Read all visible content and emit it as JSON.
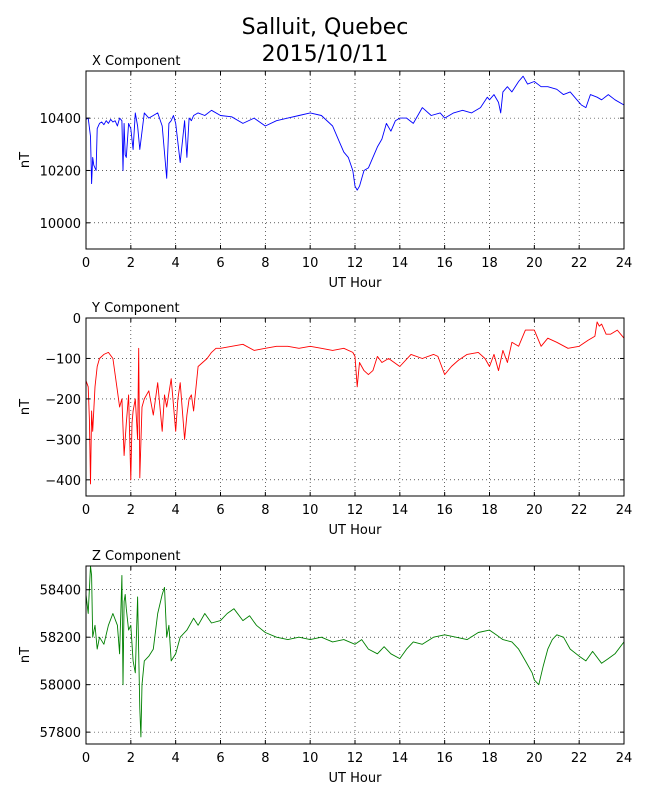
{
  "title_line1": "Salluit, Quebec",
  "title_line2": "2015/10/11",
  "chart_data": [
    {
      "type": "line",
      "title": "X Component",
      "xlabel": "UT Hour",
      "ylabel": "nT",
      "color": "#0000ff",
      "xlim": [
        0,
        24
      ],
      "ylim": [
        9900,
        10580
      ],
      "xticks": [
        0,
        2,
        4,
        6,
        8,
        10,
        12,
        14,
        16,
        18,
        20,
        22,
        24
      ],
      "yticks": [
        10000,
        10200,
        10400
      ],
      "grid": true,
      "series": [
        {
          "x": [
            0,
            0.1,
            0.2,
            0.25,
            0.3,
            0.35,
            0.45,
            0.5,
            0.6,
            0.7,
            0.8,
            0.9,
            1.0,
            1.1,
            1.2,
            1.3,
            1.4,
            1.5,
            1.6,
            1.65,
            1.7,
            1.75,
            1.8,
            1.9,
            2.0,
            2.1,
            2.2,
            2.3,
            2.4,
            2.6,
            2.8,
            3.0,
            3.2,
            3.4,
            3.6,
            3.7,
            3.8,
            3.9,
            4.0,
            4.2,
            4.4,
            4.5,
            4.6,
            4.7,
            4.8,
            5.0,
            5.3,
            5.6,
            6.0,
            6.5,
            7.0,
            7.5,
            8.0,
            8.5,
            9.0,
            9.5,
            10.0,
            10.5,
            11.0,
            11.3,
            11.5,
            11.7,
            11.9,
            12.0,
            12.1,
            12.2,
            12.4,
            12.6,
            12.8,
            13.0,
            13.2,
            13.4,
            13.6,
            13.8,
            14.0,
            14.3,
            14.6,
            15.0,
            15.4,
            15.8,
            16.0,
            16.4,
            16.8,
            17.2,
            17.6,
            17.9,
            18.0,
            18.2,
            18.4,
            18.5,
            18.6,
            18.8,
            19.0,
            19.3,
            19.5,
            19.7,
            20.0,
            20.3,
            20.6,
            21.0,
            21.3,
            21.6,
            21.9,
            22.1,
            22.3,
            22.5,
            22.8,
            23.0,
            23.3,
            23.6,
            24.0
          ],
          "y": [
            10395,
            10400,
            10330,
            10150,
            10250,
            10220,
            10200,
            10360,
            10380,
            10385,
            10375,
            10390,
            10380,
            10395,
            10385,
            10390,
            10370,
            10400,
            10390,
            10200,
            10380,
            10260,
            10250,
            10380,
            10360,
            10280,
            10420,
            10370,
            10280,
            10420,
            10400,
            10410,
            10420,
            10370,
            10170,
            10380,
            10390,
            10410,
            10380,
            10230,
            10390,
            10250,
            10400,
            10390,
            10410,
            10420,
            10410,
            10430,
            10410,
            10405,
            10380,
            10400,
            10370,
            10390,
            10400,
            10410,
            10420,
            10410,
            10370,
            10310,
            10270,
            10250,
            10200,
            10140,
            10125,
            10140,
            10200,
            10210,
            10250,
            10290,
            10320,
            10380,
            10350,
            10390,
            10400,
            10400,
            10380,
            10440,
            10410,
            10420,
            10400,
            10420,
            10430,
            10420,
            10440,
            10480,
            10470,
            10490,
            10460,
            10420,
            10500,
            10520,
            10500,
            10540,
            10560,
            10530,
            10540,
            10520,
            10520,
            10510,
            10490,
            10500,
            10470,
            10450,
            10440,
            10490,
            10480,
            10470,
            10490,
            10470,
            10450
          ]
        }
      ]
    },
    {
      "type": "line",
      "title": "Y Component",
      "xlabel": "UT Hour",
      "ylabel": "nT",
      "color": "#ff0000",
      "xlim": [
        0,
        24
      ],
      "ylim": [
        -440,
        0
      ],
      "xticks": [
        0,
        2,
        4,
        6,
        8,
        10,
        12,
        14,
        16,
        18,
        20,
        22,
        24
      ],
      "yticks": [
        -400,
        -300,
        -200,
        -100,
        0
      ],
      "grid": true,
      "series": [
        {
          "x": [
            0,
            0.1,
            0.15,
            0.2,
            0.25,
            0.3,
            0.4,
            0.5,
            0.6,
            0.8,
            1.0,
            1.2,
            1.4,
            1.5,
            1.6,
            1.7,
            1.8,
            1.9,
            2.0,
            2.05,
            2.1,
            2.2,
            2.3,
            2.35,
            2.4,
            2.5,
            2.6,
            2.8,
            3.0,
            3.1,
            3.2,
            3.4,
            3.5,
            3.6,
            3.8,
            4.0,
            4.1,
            4.2,
            4.4,
            4.5,
            4.6,
            4.7,
            4.8,
            5.0,
            5.2,
            5.4,
            5.6,
            5.8,
            6.0,
            6.5,
            7.0,
            7.5,
            8.0,
            8.5,
            9.0,
            9.5,
            10.0,
            10.5,
            11.0,
            11.5,
            11.9,
            12.0,
            12.1,
            12.2,
            12.4,
            12.6,
            12.8,
            13.0,
            13.2,
            13.5,
            14.0,
            14.5,
            15.0,
            15.5,
            15.7,
            16.0,
            16.3,
            16.6,
            17.0,
            17.5,
            17.8,
            18.0,
            18.2,
            18.4,
            18.6,
            18.8,
            19.0,
            19.3,
            19.6,
            20.0,
            20.3,
            20.6,
            21.0,
            21.5,
            22.0,
            22.4,
            22.7,
            22.8,
            22.9,
            23.0,
            23.2,
            23.4,
            23.7,
            24.0
          ],
          "y": [
            -155,
            -170,
            -250,
            -410,
            -230,
            -280,
            -170,
            -120,
            -100,
            -90,
            -85,
            -100,
            -180,
            -220,
            -200,
            -340,
            -260,
            -190,
            -400,
            -260,
            -230,
            -200,
            -300,
            -75,
            -395,
            -220,
            -200,
            -180,
            -240,
            -200,
            -160,
            -280,
            -190,
            -220,
            -150,
            -280,
            -200,
            -160,
            -300,
            -240,
            -200,
            -190,
            -230,
            -120,
            -110,
            -100,
            -85,
            -75,
            -75,
            -70,
            -65,
            -80,
            -75,
            -70,
            -70,
            -75,
            -70,
            -75,
            -80,
            -75,
            -85,
            -95,
            -170,
            -110,
            -130,
            -140,
            -130,
            -95,
            -110,
            -100,
            -120,
            -90,
            -100,
            -90,
            -95,
            -140,
            -120,
            -105,
            -90,
            -85,
            -100,
            -120,
            -90,
            -130,
            -80,
            -110,
            -60,
            -70,
            -30,
            -30,
            -70,
            -50,
            -60,
            -75,
            -70,
            -55,
            -45,
            -10,
            -20,
            -15,
            -40,
            -40,
            -30,
            -50
          ]
        }
      ]
    },
    {
      "type": "line",
      "title": "Z Component",
      "xlabel": "UT Hour",
      "ylabel": "nT",
      "color": "#008000",
      "xlim": [
        0,
        24
      ],
      "ylim": [
        57750,
        58500
      ],
      "xticks": [
        0,
        2,
        4,
        6,
        8,
        10,
        12,
        14,
        16,
        18,
        20,
        22,
        24
      ],
      "yticks": [
        57800,
        58000,
        58200,
        58400
      ],
      "grid": true,
      "series": [
        {
          "x": [
            0,
            0.1,
            0.2,
            0.25,
            0.3,
            0.4,
            0.5,
            0.6,
            0.8,
            1.0,
            1.2,
            1.4,
            1.5,
            1.6,
            1.65,
            1.7,
            1.75,
            1.8,
            1.9,
            2.0,
            2.1,
            2.2,
            2.3,
            2.4,
            2.45,
            2.5,
            2.6,
            2.8,
            3.0,
            3.2,
            3.4,
            3.5,
            3.6,
            3.7,
            3.8,
            4.0,
            4.2,
            4.5,
            4.8,
            5.0,
            5.3,
            5.6,
            6.0,
            6.3,
            6.6,
            7.0,
            7.3,
            7.6,
            8.0,
            8.5,
            9.0,
            9.5,
            10.0,
            10.5,
            11.0,
            11.5,
            12.0,
            12.3,
            12.6,
            13.0,
            13.3,
            13.6,
            14.0,
            14.3,
            14.6,
            15.0,
            15.5,
            16.0,
            16.5,
            17.0,
            17.5,
            18.0,
            18.3,
            18.6,
            19.0,
            19.3,
            19.6,
            19.9,
            20.0,
            20.2,
            20.4,
            20.6,
            20.8,
            21.0,
            21.3,
            21.6,
            22.0,
            22.3,
            22.6,
            23.0,
            23.3,
            23.6,
            24.0
          ],
          "y": [
            58380,
            58300,
            58500,
            58460,
            58200,
            58250,
            58150,
            58200,
            58170,
            58250,
            58300,
            58250,
            58130,
            58460,
            58000,
            58350,
            58380,
            58320,
            58230,
            58250,
            58100,
            58050,
            58370,
            57900,
            57780,
            58000,
            58100,
            58120,
            58150,
            58300,
            58380,
            58410,
            58200,
            58250,
            58100,
            58130,
            58200,
            58230,
            58280,
            58250,
            58300,
            58260,
            58270,
            58300,
            58320,
            58270,
            58290,
            58250,
            58220,
            58200,
            58190,
            58200,
            58190,
            58200,
            58180,
            58190,
            58170,
            58190,
            58150,
            58130,
            58160,
            58130,
            58110,
            58150,
            58180,
            58170,
            58200,
            58210,
            58200,
            58190,
            58220,
            58230,
            58210,
            58190,
            58180,
            58150,
            58100,
            58050,
            58020,
            58000,
            58080,
            58150,
            58190,
            58210,
            58200,
            58150,
            58120,
            58100,
            58140,
            58090,
            58110,
            58130,
            58180
          ]
        }
      ]
    }
  ]
}
